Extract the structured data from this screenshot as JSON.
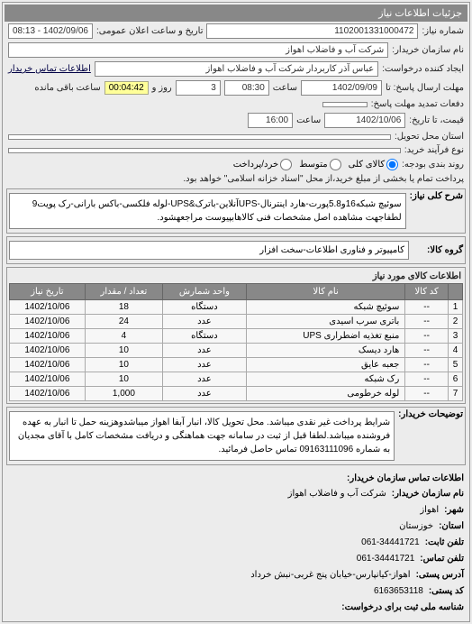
{
  "panel_title": "جزئیات اطلاعات نیاز",
  "header": {
    "req_no_label": "شماره نیاز:",
    "req_no": "1102001331000472",
    "announce_label": "تاریخ و ساعت اعلان عمومی:",
    "announce_value": "1402/09/06 - 08:13",
    "buyer_name_label": "نام سازمان خریدار:",
    "buyer_name": "شرکت آب و فاضلاب اهواز",
    "requester_label": "ایجاد کننده درخواست:",
    "requester": "عباس آذر کاربردار شرکت آب و فاضلاب اهواز",
    "contact_link": "اطلاعات تماس خریدار",
    "send_deadline_label": "مهلت ارسال پاسخ: تا",
    "send_date": "1402/09/09",
    "time_label": "ساعت",
    "send_time": "08:30",
    "days_label": "روز و",
    "days_value": "3",
    "remain_time": "00:04:42",
    "remain_label": "ساعت باقی مانده",
    "bid_ext_label": "دفعات تمدید مهلت پاسخ:",
    "price_to_label": "قیمت، تا تاریخ:",
    "price_to_date": "1402/10/06",
    "price_to_time": "16:00",
    "delivery_addr_label": "استان محل تحویل:",
    "form_label": "نوع فرآیند خرید:",
    "budget_row_label": "روند بندی بودجه:",
    "radio_govt": "کالای کلی",
    "radio_medium": "متوسط",
    "radio_small": "خرد/پرداخت",
    "payment_note": "پرداخت تمام یا بخشی از مبلغ خرید،از محل \"اسناد خزانه اسلامی\" خواهد بود."
  },
  "need": {
    "side_label": "شرح کلی نیاز:",
    "text": "سوئیچ شبکه16و5.8پورت-هارد اینترنال-UPSآنلاین-باترک&UPS-لوله فلکسی-باکس بارانی-رک پویت9 لطفاجهت مشاهده اصل مشخصات فنی کالاهابپیوست مراجعهشود."
  },
  "group": {
    "side_label": "گروه کالا:",
    "text": "کامپیوتر و فناوری اطلاعات-سخت افزار"
  },
  "items_label": "اطلاعات کالای مورد نیاز",
  "table": {
    "columns": [
      "",
      "کد کالا",
      "نام کالا",
      "واحد شمارش",
      "تعداد / مقدار",
      "تاریخ نیاز"
    ],
    "rows": [
      [
        "1",
        "--",
        "سوئیچ شبکه",
        "دستگاه",
        "18",
        "1402/10/06"
      ],
      [
        "2",
        "--",
        "باتری سرب اسیدی",
        "عدد",
        "24",
        "1402/10/06"
      ],
      [
        "3",
        "--",
        "منبع تغذیه اضطراری UPS",
        "دستگاه",
        "4",
        "1402/10/06"
      ],
      [
        "4",
        "--",
        "هارد دیسک",
        "عدد",
        "10",
        "1402/10/06"
      ],
      [
        "5",
        "--",
        "جعبه عایق",
        "عدد",
        "10",
        "1402/10/06"
      ],
      [
        "6",
        "--",
        "رک شبکه",
        "عدد",
        "10",
        "1402/10/06"
      ],
      [
        "7",
        "--",
        "لوله خرطومی",
        "عدد",
        "1,000",
        "1402/10/06"
      ]
    ]
  },
  "notes": {
    "side_label": "توضیحات خریدار:",
    "text": "شرایط پرداخت غیر نقدی میباشد. محل تحویل کالا، انبار آبفا اهواز میباشدوهزینه حمل تا انبار به عهده فروشنده میباشد.لطفا قبل از ثبت در سامانه جهت هماهنگی و دریافت مشخصات کامل با آقای مجدیان به شماره 09163111096 تماس حاصل فرمائید."
  },
  "contact_header": "اطلاعات تماس سازمان خریدار:",
  "contact": {
    "org_label": "نام سازمان خریدار:",
    "org": "شرکت آب و فاضلاب اهواز",
    "city_label": "شهر:",
    "city": "اهواز",
    "province_label": "استان:",
    "province": "خوزستان",
    "phone_label": "تلفن ثابت:",
    "phone": "061-34441721",
    "fax_label": "تلفن تماس:",
    "fax": "061-34441721",
    "addr_label": "آدرس پستی:",
    "addr": "اهواز-کیانپارس-خیابان پنج غربی-نبش خرداد",
    "post_label": "کد پستی:",
    "post": "6163653118",
    "reg_label": "شناسه ملی ثبت برای درخواست:"
  }
}
